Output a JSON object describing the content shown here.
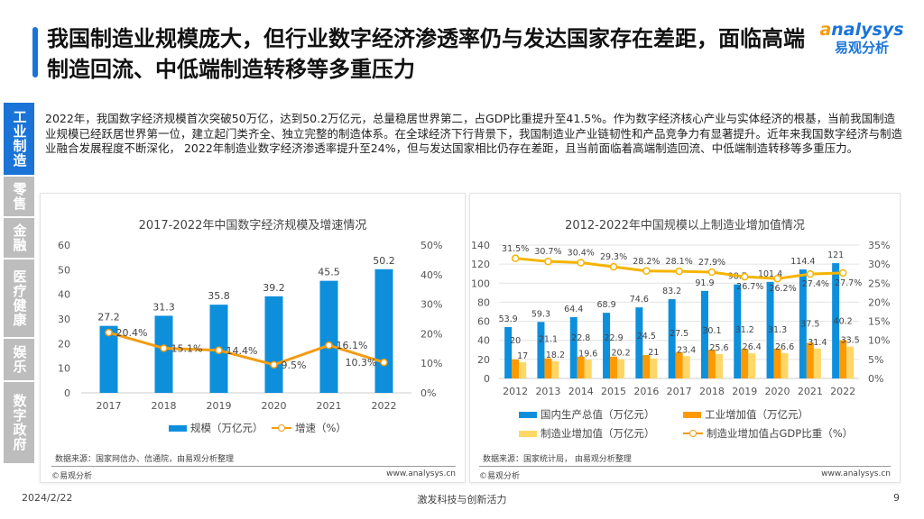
{
  "header": {
    "title": "我国制造业规模庞大，但行业数字经济渗透率仍与发达国家存在差距，面临高端制造回流、中低端制造转移等多重压力"
  },
  "logo": {
    "en_a": "a",
    "en_rest": "nalysys",
    "cn": "易观分析"
  },
  "sidebar": {
    "items": [
      {
        "label": "工业制造",
        "active": true
      },
      {
        "label": "零售"
      },
      {
        "label": "金融"
      },
      {
        "label": "医疗健康"
      },
      {
        "label": "娱乐"
      },
      {
        "label": "数字政府"
      }
    ]
  },
  "intro": "2022年，我国数字经济规模首次突破50万亿，达到50.2万亿元，总量稳居世界第二，占GDP比重提升至41.5%。作为数字经济核心产业与实体经济的根基，当前我国制造业规模已经跃居世界第一位，建立起门类齐全、独立完整的制造体系。在全球经济下行背景下，我国制造业产业链韧性和产品竞争力有显著提升。近年来我国数字经济与制造业融合发展程度不断深化， 2022年制造业数字经济渗透率提升至24%，但与发达国家相比仍存在差距，且当前面临着高端制造回流、中低端制造转移等多重压力。",
  "colors": {
    "blue": "#0d8fdc",
    "orange": "#ff9900",
    "light_orange": "#ffd766",
    "line": "#f5b400",
    "accent": "#1a74d8"
  },
  "chart_data": [
    {
      "type": "bar",
      "title": "2017-2022年中国数字经济规模及增速情况",
      "categories": [
        "2017",
        "2018",
        "2019",
        "2020",
        "2021",
        "2022"
      ],
      "series": [
        {
          "name": "规模（万亿元）",
          "type": "bar",
          "axis": "left",
          "values": [
            27.2,
            31.3,
            35.8,
            39.2,
            45.5,
            50.2
          ],
          "color": "#0d8fdc"
        },
        {
          "name": "增速（%）",
          "type": "line",
          "axis": "right",
          "values": [
            20.4,
            15.1,
            14.4,
            9.5,
            16.1,
            10.3
          ],
          "color": "#f39c12"
        }
      ],
      "ylim": [
        0,
        60
      ],
      "yticks": [
        "0",
        "10",
        "20",
        "30",
        "40",
        "50",
        "60"
      ],
      "y2lim": [
        0,
        50
      ],
      "y2ticks": [
        "0%",
        "10%",
        "20%",
        "30%",
        "40%",
        "50%"
      ],
      "grid": false,
      "legend": "bottom",
      "source": "数据来源：国家网信办、信通院，由易观分析整理",
      "copyright": "©易观分析",
      "site": "www.analysys.cn"
    },
    {
      "type": "bar",
      "title": "2012-2022年中国规模以上制造业增加值情况",
      "categories": [
        "2012",
        "2013",
        "2014",
        "2015",
        "2016",
        "2017",
        "2018",
        "2019",
        "2020",
        "2021",
        "2022"
      ],
      "series": [
        {
          "name": "国内生产总值（万亿元）",
          "type": "bar",
          "axis": "left",
          "values": [
            53.9,
            59.3,
            64.4,
            68.9,
            74.6,
            83.2,
            91.9,
            98.7,
            101.4,
            114.4,
            121
          ],
          "color": "#0d8fdc"
        },
        {
          "name": "工业增加值（万亿元）",
          "type": "bar",
          "axis": "left",
          "values": [
            20,
            21.1,
            22.8,
            22.9,
            24.5,
            27.5,
            30.1,
            31.2,
            31.3,
            37.5,
            40.2
          ],
          "color": "#ff9900"
        },
        {
          "name": "制造业增加值（万亿元）",
          "type": "bar",
          "axis": "left",
          "values": [
            17,
            18.2,
            19.6,
            20.2,
            21,
            23.4,
            25.6,
            26.4,
            26.6,
            31.4,
            33.5
          ],
          "color": "#ffd766"
        },
        {
          "name": "制造业增加值占GDP比重（%）",
          "type": "line",
          "axis": "right",
          "values": [
            31.5,
            30.7,
            30.4,
            29.3,
            28.2,
            28.1,
            27.9,
            26.7,
            26.2,
            27.4,
            27.7
          ],
          "color": "#f5b400"
        }
      ],
      "ylim": [
        0,
        140
      ],
      "yticks": [
        "0",
        "20",
        "40",
        "60",
        "80",
        "100",
        "120",
        "140"
      ],
      "y2lim": [
        0,
        35
      ],
      "y2ticks": [
        "0%",
        "5%",
        "10%",
        "15%",
        "20%",
        "25%",
        "30%",
        "35%"
      ],
      "grid": true,
      "legend": "bottom",
      "source": "数据来源：国家统计局， 由易观分析整理",
      "copyright": "©易观分析",
      "site": "www.analysys.cn"
    }
  ],
  "footer": {
    "date": "2024/2/22",
    "center": "激发科技与创新活力",
    "page": "9"
  }
}
